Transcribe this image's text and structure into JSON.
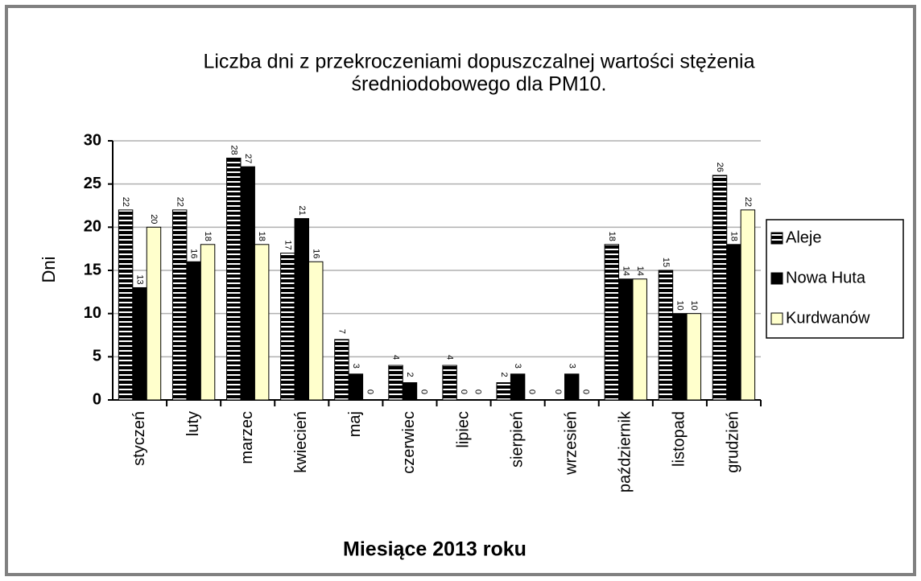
{
  "chart_data": {
    "type": "bar",
    "title": [
      "Liczba dni z przekroczeniami  dopuszczalnej  wartości stężenia",
      "średniodobowego dla PM10."
    ],
    "x_label": "Miesiące 2013 roku",
    "y_label": "Dni",
    "categories": [
      "styczeń",
      "luty",
      "marzec",
      "kwiecień",
      "maj",
      "czerwiec",
      "lipiec",
      "sierpień",
      "wrzesień",
      "październik",
      "listopad",
      "grudzień"
    ],
    "series": [
      {
        "name": "Aleje",
        "color": "#000000",
        "pattern": "horizontal-stripes",
        "values": [
          22,
          22,
          28,
          17,
          7,
          4,
          4,
          2,
          0,
          18,
          15,
          26
        ]
      },
      {
        "name": "Nowa Huta",
        "color": "#000000",
        "values": [
          13,
          16,
          27,
          21,
          3,
          2,
          0,
          3,
          3,
          14,
          10,
          18
        ]
      },
      {
        "name": "Kurdwanów",
        "color": "#ffffcc",
        "values": [
          20,
          18,
          18,
          16,
          0,
          0,
          0,
          0,
          0,
          14,
          10,
          22
        ]
      }
    ],
    "ylim": [
      0,
      30
    ],
    "yticks": [
      0,
      5,
      10,
      15,
      20,
      25,
      30
    ],
    "grid": true,
    "legend": "right"
  }
}
